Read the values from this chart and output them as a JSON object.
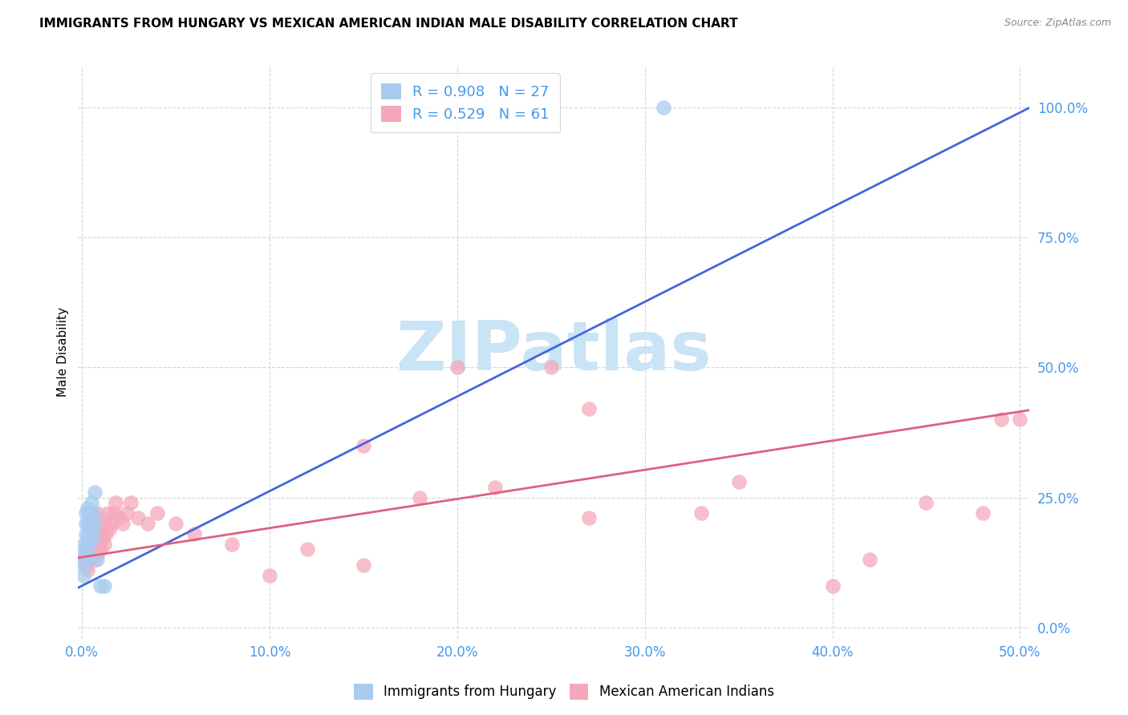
{
  "title": "IMMIGRANTS FROM HUNGARY VS MEXICAN AMERICAN INDIAN MALE DISABILITY CORRELATION CHART",
  "source": "Source: ZipAtlas.com",
  "ylabel": "Male Disability",
  "xlim": [
    -0.002,
    0.505
  ],
  "ylim": [
    -0.02,
    1.08
  ],
  "xticks": [
    0.0,
    0.1,
    0.2,
    0.3,
    0.4,
    0.5
  ],
  "xticklabels": [
    "0.0%",
    "10.0%",
    "20.0%",
    "30.0%",
    "40.0%",
    "50.0%"
  ],
  "yticks": [
    0.0,
    0.25,
    0.5,
    0.75,
    1.0
  ],
  "yticklabels": [
    "0.0%",
    "25.0%",
    "50.0%",
    "75.0%",
    "100.0%"
  ],
  "legend_r1": "R = 0.908",
  "legend_n1": "N = 27",
  "legend_r2": "R = 0.529",
  "legend_n2": "N = 61",
  "blue_color": "#A8CCF0",
  "pink_color": "#F5A8BC",
  "line_blue": "#4466DD",
  "line_pink": "#E06080",
  "watermark_text": "ZIPatlas",
  "watermark_color": "#C8E4F5",
  "grid_color": "#CCCCCC",
  "tick_color": "#4499EE",
  "axis_bg": "#FFFFFF",
  "blue_scatter_x": [
    0.001,
    0.001,
    0.001,
    0.001,
    0.002,
    0.002,
    0.002,
    0.002,
    0.002,
    0.003,
    0.003,
    0.003,
    0.003,
    0.004,
    0.004,
    0.004,
    0.005,
    0.005,
    0.005,
    0.006,
    0.006,
    0.007,
    0.007,
    0.008,
    0.01,
    0.012,
    0.31
  ],
  "blue_scatter_y": [
    0.12,
    0.14,
    0.16,
    0.1,
    0.13,
    0.15,
    0.18,
    0.2,
    0.22,
    0.14,
    0.17,
    0.2,
    0.23,
    0.16,
    0.19,
    0.22,
    0.17,
    0.2,
    0.24,
    0.18,
    0.22,
    0.2,
    0.26,
    0.13,
    0.08,
    0.08,
    1.0
  ],
  "pink_scatter_x": [
    0.001,
    0.002,
    0.002,
    0.003,
    0.003,
    0.003,
    0.004,
    0.004,
    0.004,
    0.005,
    0.005,
    0.005,
    0.006,
    0.006,
    0.007,
    0.007,
    0.007,
    0.008,
    0.008,
    0.008,
    0.009,
    0.009,
    0.01,
    0.01,
    0.011,
    0.012,
    0.012,
    0.013,
    0.014,
    0.015,
    0.016,
    0.017,
    0.018,
    0.02,
    0.022,
    0.024,
    0.026,
    0.03,
    0.035,
    0.04,
    0.05,
    0.06,
    0.08,
    0.1,
    0.12,
    0.15,
    0.18,
    0.2,
    0.22,
    0.25,
    0.27,
    0.33,
    0.35,
    0.4,
    0.42,
    0.45,
    0.48,
    0.49,
    0.5,
    0.27,
    0.15
  ],
  "pink_scatter_y": [
    0.13,
    0.12,
    0.15,
    0.11,
    0.14,
    0.17,
    0.13,
    0.16,
    0.2,
    0.14,
    0.18,
    0.22,
    0.15,
    0.19,
    0.13,
    0.17,
    0.21,
    0.14,
    0.18,
    0.22,
    0.16,
    0.2,
    0.15,
    0.19,
    0.17,
    0.16,
    0.2,
    0.18,
    0.22,
    0.19,
    0.2,
    0.22,
    0.24,
    0.21,
    0.2,
    0.22,
    0.24,
    0.21,
    0.2,
    0.22,
    0.2,
    0.18,
    0.16,
    0.1,
    0.15,
    0.35,
    0.25,
    0.5,
    0.27,
    0.5,
    0.21,
    0.22,
    0.28,
    0.08,
    0.13,
    0.24,
    0.22,
    0.4,
    0.4,
    0.42,
    0.12
  ],
  "blue_line_x": [
    -0.01,
    0.51
  ],
  "blue_line_y_intercept": 0.08,
  "blue_line_slope": 1.82,
  "pink_line_x": [
    -0.01,
    0.51
  ],
  "pink_line_y_intercept": 0.135,
  "pink_line_slope": 0.56,
  "title_fontsize": 11,
  "legend_fontsize": 13,
  "ylabel_fontsize": 11,
  "source_fontsize": 9,
  "legend_label1": "Immigrants from Hungary",
  "legend_label2": "Mexican American Indians"
}
